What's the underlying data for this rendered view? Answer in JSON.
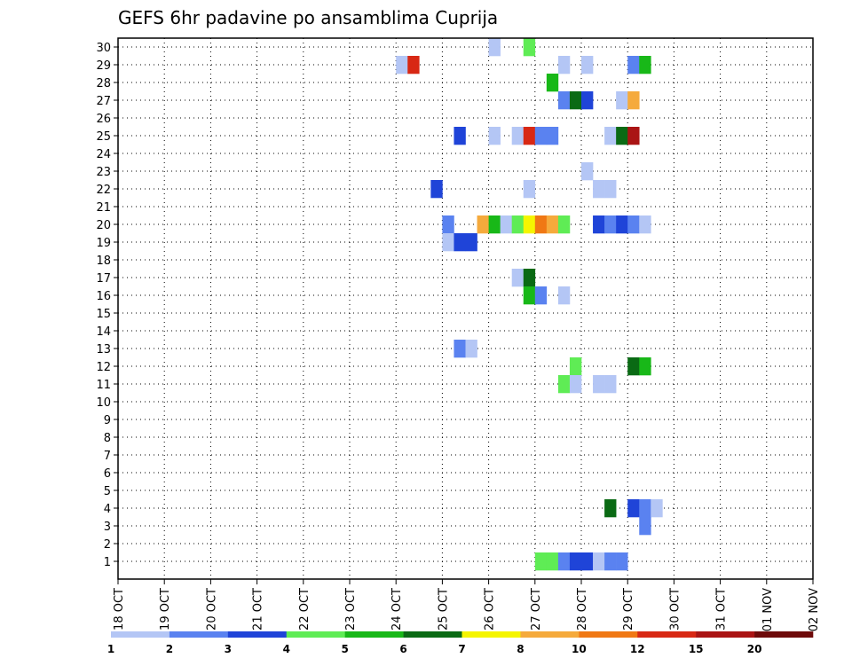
{
  "chart_data": {
    "type": "heatmap",
    "title": "GEFS 6hr padavine po ansamblima Cuprija",
    "xlabel": "",
    "ylabel": "",
    "x_ticks": [
      "18 OCT",
      "19 OCT",
      "20 OCT",
      "21 OCT",
      "22 OCT",
      "23 OCT",
      "24 OCT",
      "25 OCT",
      "26 OCT",
      "27 OCT",
      "28 OCT",
      "29 OCT",
      "30 OCT",
      "31 OCT",
      "01 NOV",
      "02 NOV"
    ],
    "y_ticks": [
      "1",
      "2",
      "3",
      "4",
      "5",
      "6",
      "7",
      "8",
      "9",
      "10",
      "11",
      "12",
      "13",
      "14",
      "15",
      "16",
      "17",
      "18",
      "19",
      "20",
      "21",
      "22",
      "23",
      "24",
      "25",
      "26",
      "27",
      "28",
      "29",
      "30"
    ],
    "x_range_days": [
      0,
      15
    ],
    "y_range": [
      0,
      30
    ],
    "grid": true,
    "legend": {
      "placement": "bottom",
      "labels": [
        "1",
        "2",
        "3",
        "4",
        "5",
        "6",
        "7",
        "8",
        "10",
        "12",
        "15",
        "20"
      ],
      "colors": [
        "#b4c6f5",
        "#5a82f0",
        "#1f44d8",
        "#5fec55",
        "#18b818",
        "#0a6a14",
        "#f5f500",
        "#f5aa3c",
        "#f07814",
        "#d82814",
        "#aa1414",
        "#6e0a0a"
      ]
    },
    "cells": [
      {
        "m": 30,
        "t": 32,
        "c": 1
      },
      {
        "m": 30,
        "t": 35,
        "c": 4
      },
      {
        "m": 29,
        "t": 24,
        "c": 1
      },
      {
        "m": 29,
        "t": 25,
        "c": 10
      },
      {
        "m": 29,
        "t": 38,
        "c": 1
      },
      {
        "m": 29,
        "t": 40,
        "c": 1
      },
      {
        "m": 29,
        "t": 44,
        "c": 2
      },
      {
        "m": 29,
        "t": 45,
        "c": 5
      },
      {
        "m": 28,
        "t": 37,
        "c": 5
      },
      {
        "m": 27,
        "t": 38,
        "c": 2
      },
      {
        "m": 27,
        "t": 39,
        "c": 6
      },
      {
        "m": 27,
        "t": 40,
        "c": 3
      },
      {
        "m": 27,
        "t": 43,
        "c": 1
      },
      {
        "m": 27,
        "t": 44,
        "c": 8
      },
      {
        "m": 25,
        "t": 29,
        "c": 3
      },
      {
        "m": 25,
        "t": 32,
        "c": 1
      },
      {
        "m": 25,
        "t": 34,
        "c": 1
      },
      {
        "m": 25,
        "t": 35,
        "c": 10
      },
      {
        "m": 25,
        "t": 36,
        "c": 2
      },
      {
        "m": 25,
        "t": 37,
        "c": 2
      },
      {
        "m": 25,
        "t": 42,
        "c": 1
      },
      {
        "m": 25,
        "t": 43,
        "c": 6
      },
      {
        "m": 25,
        "t": 44,
        "c": 11
      },
      {
        "m": 23,
        "t": 40,
        "c": 1
      },
      {
        "m": 22,
        "t": 27,
        "c": 3
      },
      {
        "m": 22,
        "t": 35,
        "c": 1
      },
      {
        "m": 22,
        "t": 41,
        "c": 1
      },
      {
        "m": 22,
        "t": 42,
        "c": 1
      },
      {
        "m": 20,
        "t": 28,
        "c": 2
      },
      {
        "m": 20,
        "t": 31,
        "c": 8
      },
      {
        "m": 20,
        "t": 32,
        "c": 5
      },
      {
        "m": 20,
        "t": 33,
        "c": 1
      },
      {
        "m": 20,
        "t": 34,
        "c": 4
      },
      {
        "m": 20,
        "t": 35,
        "c": 7
      },
      {
        "m": 20,
        "t": 36,
        "c": 9
      },
      {
        "m": 20,
        "t": 37,
        "c": 8
      },
      {
        "m": 20,
        "t": 38,
        "c": 4
      },
      {
        "m": 20,
        "t": 41,
        "c": 3
      },
      {
        "m": 20,
        "t": 42,
        "c": 2
      },
      {
        "m": 20,
        "t": 43,
        "c": 3
      },
      {
        "m": 20,
        "t": 44,
        "c": 2
      },
      {
        "m": 20,
        "t": 45,
        "c": 1
      },
      {
        "m": 19,
        "t": 28,
        "c": 1
      },
      {
        "m": 19,
        "t": 29,
        "c": 3
      },
      {
        "m": 19,
        "t": 30,
        "c": 3
      },
      {
        "m": 17,
        "t": 34,
        "c": 1
      },
      {
        "m": 17,
        "t": 35,
        "c": 6
      },
      {
        "m": 16,
        "t": 35,
        "c": 5
      },
      {
        "m": 16,
        "t": 36,
        "c": 2
      },
      {
        "m": 16,
        "t": 38,
        "c": 1
      },
      {
        "m": 13,
        "t": 29,
        "c": 2
      },
      {
        "m": 13,
        "t": 30,
        "c": 1
      },
      {
        "m": 12,
        "t": 39,
        "c": 4
      },
      {
        "m": 12,
        "t": 44,
        "c": 6
      },
      {
        "m": 12,
        "t": 45,
        "c": 5
      },
      {
        "m": 11,
        "t": 38,
        "c": 4
      },
      {
        "m": 11,
        "t": 39,
        "c": 1
      },
      {
        "m": 11,
        "t": 41,
        "c": 1
      },
      {
        "m": 11,
        "t": 42,
        "c": 1
      },
      {
        "m": 4,
        "t": 42,
        "c": 6
      },
      {
        "m": 4,
        "t": 44,
        "c": 3
      },
      {
        "m": 4,
        "t": 45,
        "c": 2
      },
      {
        "m": 4,
        "t": 46,
        "c": 1
      },
      {
        "m": 3,
        "t": 45,
        "c": 2
      },
      {
        "m": 1,
        "t": 36,
        "c": 4
      },
      {
        "m": 1,
        "t": 37,
        "c": 4
      },
      {
        "m": 1,
        "t": 38,
        "c": 2
      },
      {
        "m": 1,
        "t": 39,
        "c": 3
      },
      {
        "m": 1,
        "t": 40,
        "c": 3
      },
      {
        "m": 1,
        "t": 41,
        "c": 1
      },
      {
        "m": 1,
        "t": 42,
        "c": 2
      },
      {
        "m": 1,
        "t": 43,
        "c": 2
      }
    ]
  }
}
